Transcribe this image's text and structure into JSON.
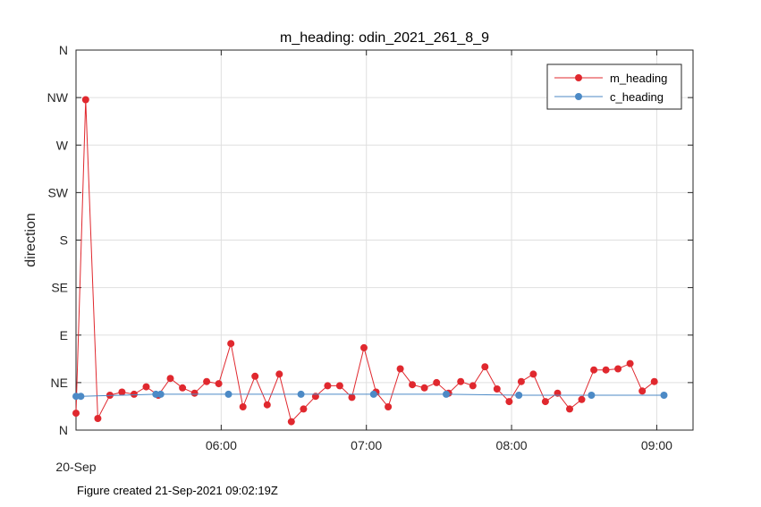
{
  "chart_data": {
    "type": "line",
    "title": "m_heading: odin_2021_261_8_9",
    "ylabel": "direction",
    "xlabel": "",
    "x_date_label": "20-Sep",
    "xlim": [
      "05:00",
      "09:15"
    ],
    "x_ticks": [
      "06:00",
      "07:00",
      "08:00",
      "09:00"
    ],
    "ylim": [
      0,
      360
    ],
    "y_ticks": [
      {
        "value": 0,
        "label": "N"
      },
      {
        "value": 45,
        "label": "NE"
      },
      {
        "value": 90,
        "label": "E"
      },
      {
        "value": 135,
        "label": "SE"
      },
      {
        "value": 180,
        "label": "S"
      },
      {
        "value": 225,
        "label": "SW"
      },
      {
        "value": 270,
        "label": "W"
      },
      {
        "value": 315,
        "label": "NW"
      },
      {
        "value": 360,
        "label": "N"
      }
    ],
    "grid": true,
    "legend_position": "top-right",
    "series": [
      {
        "name": "m_heading",
        "color": "#e0282e",
        "points": [
          {
            "x": "05:00",
            "y": 16
          },
          {
            "x": "05:04",
            "y": 313
          },
          {
            "x": "05:09",
            "y": 11
          },
          {
            "x": "05:14",
            "y": 33
          },
          {
            "x": "05:19",
            "y": 36
          },
          {
            "x": "05:24",
            "y": 34
          },
          {
            "x": "05:29",
            "y": 41
          },
          {
            "x": "05:34",
            "y": 33
          },
          {
            "x": "05:39",
            "y": 49
          },
          {
            "x": "05:44",
            "y": 40
          },
          {
            "x": "05:49",
            "y": 35
          },
          {
            "x": "05:54",
            "y": 46
          },
          {
            "x": "05:59",
            "y": 44
          },
          {
            "x": "06:04",
            "y": 82
          },
          {
            "x": "06:09",
            "y": 22
          },
          {
            "x": "06:14",
            "y": 51
          },
          {
            "x": "06:19",
            "y": 24
          },
          {
            "x": "06:24",
            "y": 53
          },
          {
            "x": "06:29",
            "y": 8
          },
          {
            "x": "06:34",
            "y": 20
          },
          {
            "x": "06:39",
            "y": 32
          },
          {
            "x": "06:44",
            "y": 42
          },
          {
            "x": "06:49",
            "y": 42
          },
          {
            "x": "06:54",
            "y": 31
          },
          {
            "x": "06:59",
            "y": 78
          },
          {
            "x": "07:04",
            "y": 36
          },
          {
            "x": "07:09",
            "y": 22
          },
          {
            "x": "07:14",
            "y": 58
          },
          {
            "x": "07:19",
            "y": 43
          },
          {
            "x": "07:24",
            "y": 40
          },
          {
            "x": "07:29",
            "y": 45
          },
          {
            "x": "07:34",
            "y": 35
          },
          {
            "x": "07:39",
            "y": 46
          },
          {
            "x": "07:44",
            "y": 42
          },
          {
            "x": "07:49",
            "y": 60
          },
          {
            "x": "07:54",
            "y": 39
          },
          {
            "x": "07:59",
            "y": 27
          },
          {
            "x": "08:04",
            "y": 46
          },
          {
            "x": "08:09",
            "y": 53
          },
          {
            "x": "08:14",
            "y": 27
          },
          {
            "x": "08:19",
            "y": 35
          },
          {
            "x": "08:24",
            "y": 20
          },
          {
            "x": "08:29",
            "y": 29
          },
          {
            "x": "08:34",
            "y": 57
          },
          {
            "x": "08:39",
            "y": 57
          },
          {
            "x": "08:44",
            "y": 58
          },
          {
            "x": "08:49",
            "y": 63
          },
          {
            "x": "08:54",
            "y": 37
          },
          {
            "x": "08:59",
            "y": 46
          }
        ]
      },
      {
        "name": "c_heading",
        "color": "#4c8ac6",
        "points": [
          {
            "x": "05:00",
            "y": 32
          },
          {
            "x": "05:02",
            "y": 32
          },
          {
            "x": "05:33",
            "y": 34
          },
          {
            "x": "05:35",
            "y": 34
          },
          {
            "x": "06:03",
            "y": 34
          },
          {
            "x": "06:33",
            "y": 34
          },
          {
            "x": "07:03",
            "y": 34
          },
          {
            "x": "07:33",
            "y": 34
          },
          {
            "x": "08:03",
            "y": 33
          },
          {
            "x": "08:33",
            "y": 33
          },
          {
            "x": "09:03",
            "y": 33
          }
        ]
      }
    ]
  },
  "footnote": "Figure created 21-Sep-2021 09:02:19Z"
}
